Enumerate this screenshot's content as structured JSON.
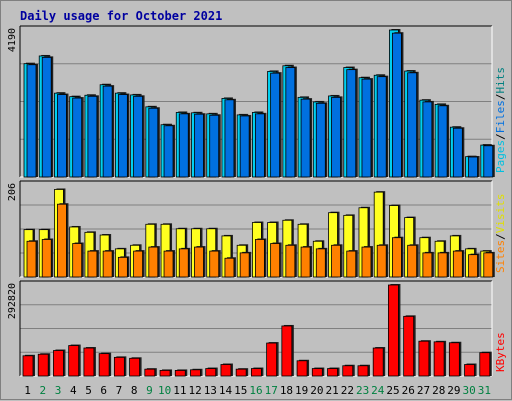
{
  "title": "Daily usage for October 2021",
  "colors": {
    "hits": "#00d0f0",
    "files": "#0070e0",
    "sites": "#ff8000",
    "visits": "#ffff20",
    "kbytes": "#ff0000",
    "weekday": "#000000",
    "weekend": "#008040",
    "separator": "#000000"
  },
  "chart_data": [
    {
      "type": "bar",
      "panel": "hits-files",
      "ymax_label": "4190",
      "legend": [
        "Pages",
        "Files",
        "Hits"
      ],
      "ylim": [
        0,
        4190
      ],
      "categories": [
        "1",
        "2",
        "3",
        "4",
        "5",
        "6",
        "7",
        "8",
        "9",
        "10",
        "11",
        "12",
        "13",
        "14",
        "15",
        "16",
        "17",
        "18",
        "19",
        "20",
        "21",
        "22",
        "23",
        "24",
        "25",
        "26",
        "27",
        "28",
        "29",
        "30",
        "31"
      ],
      "series": [
        {
          "name": "Hits",
          "values": [
            3230,
            3450,
            2390,
            2290,
            2330,
            2630,
            2390,
            2340,
            2000,
            1490,
            1840,
            1830,
            1800,
            2240,
            1770,
            1840,
            3010,
            3170,
            2270,
            2140,
            2310,
            3120,
            2830,
            2900,
            4190,
            3020,
            2190,
            2070,
            1420,
            580,
            910
          ]
        },
        {
          "name": "Files",
          "values": [
            3200,
            3410,
            2350,
            2250,
            2300,
            2590,
            2350,
            2300,
            1960,
            1460,
            1800,
            1790,
            1760,
            2200,
            1740,
            1800,
            2960,
            3120,
            2220,
            2100,
            2270,
            3060,
            2790,
            2860,
            4100,
            2970,
            2140,
            2030,
            1390,
            570,
            890
          ]
        }
      ]
    },
    {
      "type": "bar",
      "panel": "sites-visits",
      "ymax_label": "206",
      "legend": [
        "Sites",
        "Visits"
      ],
      "ylim": [
        0,
        206
      ],
      "categories": [
        "1",
        "2",
        "3",
        "4",
        "5",
        "6",
        "7",
        "8",
        "9",
        "10",
        "11",
        "12",
        "13",
        "14",
        "15",
        "16",
        "17",
        "18",
        "19",
        "20",
        "21",
        "22",
        "23",
        "24",
        "25",
        "26",
        "27",
        "28",
        "29",
        "30",
        "31"
      ],
      "series": [
        {
          "name": "Visits",
          "values": [
            106,
            106,
            196,
            112,
            100,
            94,
            63,
            71,
            118,
            118,
            108,
            108,
            108,
            92,
            71,
            122,
            122,
            127,
            118,
            80,
            144,
            138,
            155,
            190,
            160,
            133,
            88,
            80,
            92,
            63,
            58
          ]
        },
        {
          "name": "Sites",
          "values": [
            80,
            84,
            163,
            75,
            58,
            58,
            44,
            58,
            67,
            58,
            63,
            67,
            58,
            42,
            54,
            84,
            75,
            71,
            67,
            63,
            71,
            58,
            67,
            71,
            88,
            71,
            54,
            54,
            58,
            50,
            54
          ]
        }
      ]
    },
    {
      "type": "bar",
      "panel": "kbytes",
      "ymax_label": "292820",
      "legend": [
        "KBytes"
      ],
      "ylim": [
        0,
        292820
      ],
      "categories": [
        "1",
        "2",
        "3",
        "4",
        "5",
        "6",
        "7",
        "8",
        "9",
        "10",
        "11",
        "12",
        "13",
        "14",
        "15",
        "16",
        "17",
        "18",
        "19",
        "20",
        "21",
        "22",
        "23",
        "24",
        "25",
        "26",
        "27",
        "28",
        "29",
        "30",
        "31"
      ],
      "series": [
        {
          "name": "KBytes",
          "values": [
            65000,
            70000,
            82000,
            98000,
            90000,
            72000,
            60000,
            57000,
            22000,
            18000,
            18000,
            20000,
            24000,
            37000,
            22000,
            24000,
            106000,
            161000,
            49000,
            24000,
            24000,
            33000,
            33000,
            90000,
            292820,
            192000,
            112000,
            110000,
            107000,
            37000,
            75000
          ]
        }
      ]
    }
  ],
  "weekend_days": [
    "2",
    "3",
    "9",
    "10",
    "16",
    "17",
    "23",
    "24",
    "30",
    "31"
  ]
}
